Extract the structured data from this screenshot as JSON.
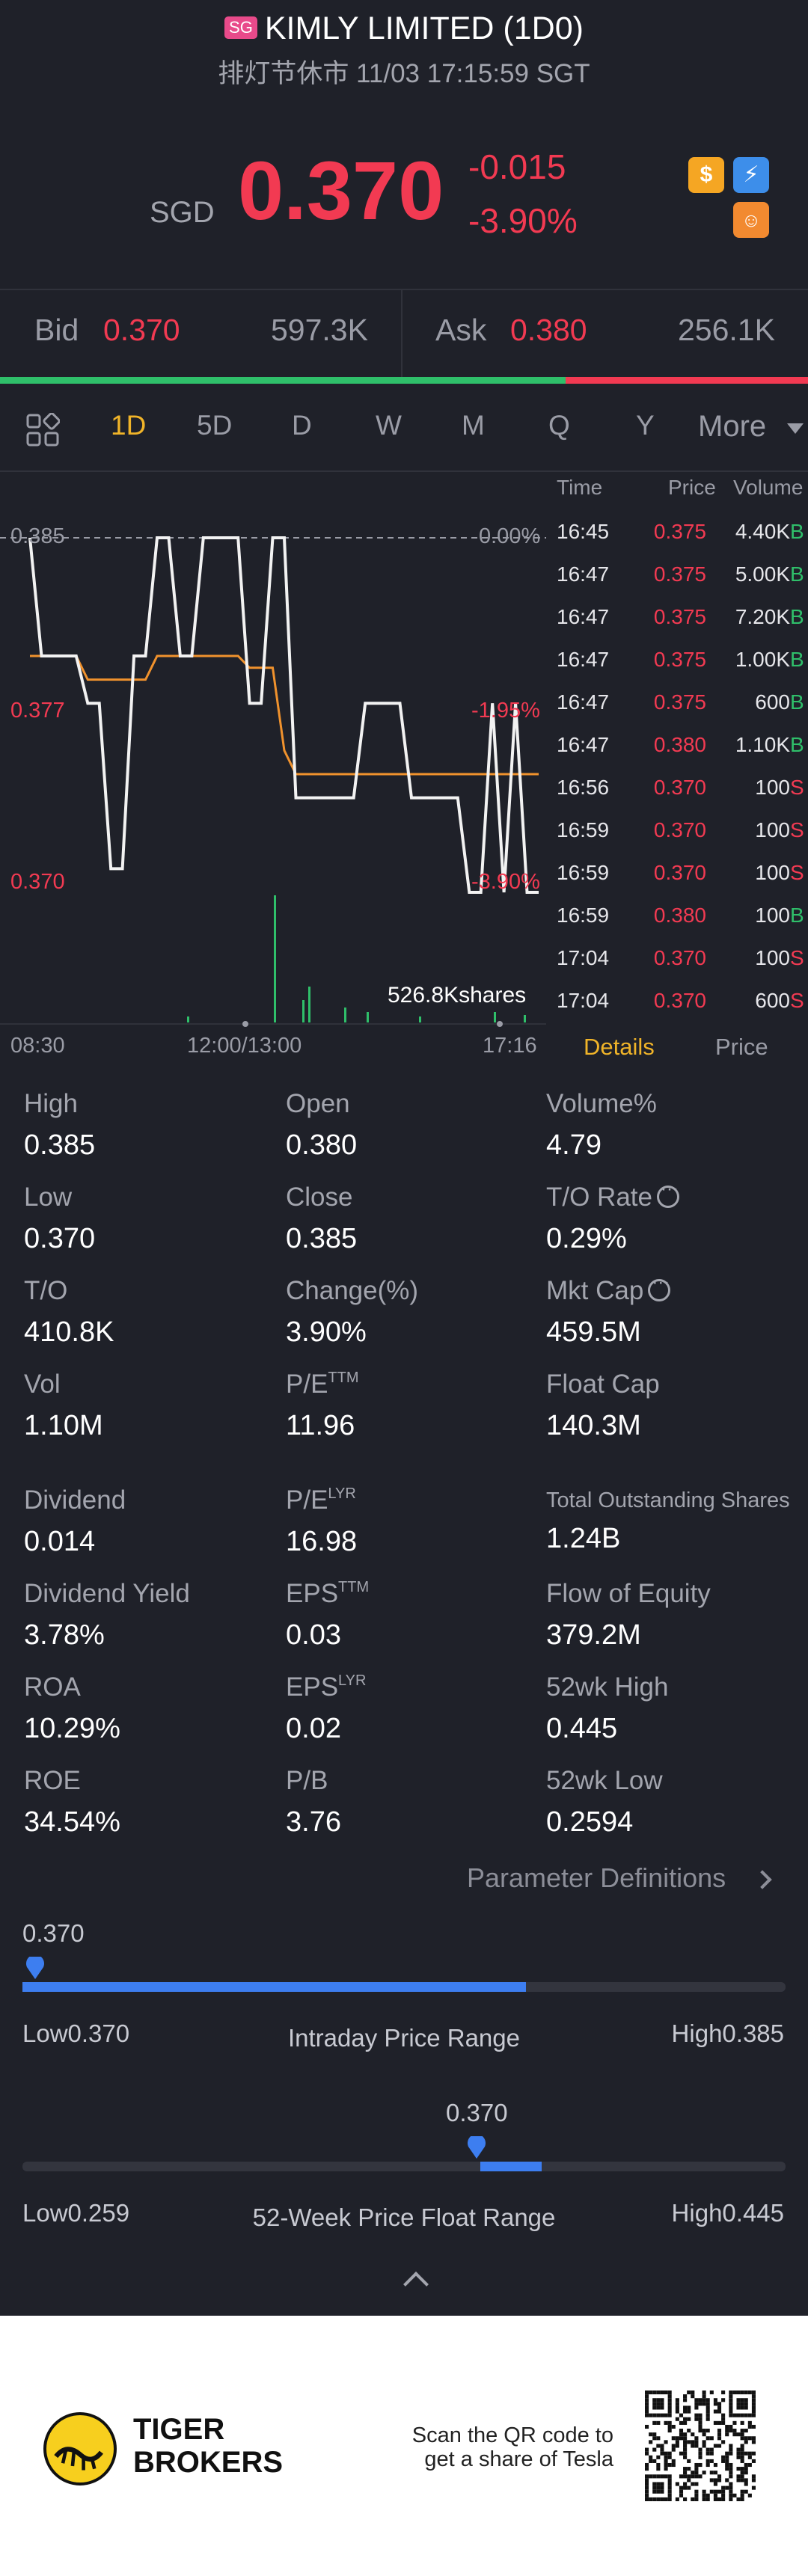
{
  "header": {
    "badge": "SG",
    "name": "KIMLY LIMITED (1D0)",
    "status_line": "排灯节休市 11/03 17:15:59 SGT",
    "currency": "SGD",
    "price": "0.370",
    "change": "-0.015",
    "change_pct": "-3.90%",
    "icons": [
      "dollar-icon",
      "flash-icon",
      "margin-icon"
    ]
  },
  "bidask": {
    "bid_label": "Bid",
    "bid_price": "0.370",
    "bid_size": "597.3K",
    "ask_label": "Ask",
    "ask_price": "0.380",
    "ask_size": "256.1K",
    "bid_ratio": 0.7
  },
  "tabs": [
    "1D",
    "5D",
    "D",
    "W",
    "M",
    "Q",
    "Y",
    "More"
  ],
  "active_tab": "1D",
  "chart": {
    "price_labels": [
      "0.385",
      "0.377",
      "0.370"
    ],
    "pct_labels": [
      "0.00%",
      "-1.95%",
      "-3.90%"
    ],
    "volume_label": "526.8Kshares",
    "time_labels": [
      "08:30",
      "12:00/13:00",
      "17:16"
    ]
  },
  "chart_data": {
    "type": "line",
    "x_label_values": [
      "08:30",
      "12:00/13:00",
      "17:16"
    ],
    "ylim": [
      0.37,
      0.385
    ],
    "series": [
      {
        "values": [
          0.385,
          0.38,
          0.38,
          0.38,
          0.38,
          0.378,
          0.378,
          0.371,
          0.371,
          0.38,
          0.38,
          0.385,
          0.385,
          0.38,
          0.38,
          0.385,
          0.385,
          0.385,
          0.385,
          0.378,
          0.378,
          0.385,
          0.385,
          0.374,
          0.374,
          0.374,
          0.374,
          0.374,
          0.374,
          0.378,
          0.378,
          0.378,
          0.378,
          0.374,
          0.374,
          0.374,
          0.374,
          0.374,
          0.37,
          0.37,
          0.378,
          0.37,
          0.378,
          0.37,
          0.37
        ]
      },
      {
        "values": [
          0.38,
          0.38,
          0.38,
          0.38,
          0.38,
          0.379,
          0.379,
          0.379,
          0.379,
          0.379,
          0.379,
          0.38,
          0.38,
          0.38,
          0.38,
          0.38,
          0.38,
          0.38,
          0.38,
          0.3795,
          0.3795,
          0.3795,
          0.376,
          0.375,
          0.375,
          0.375,
          0.375,
          0.375,
          0.375,
          0.375,
          0.375,
          0.375,
          0.375,
          0.375,
          0.375,
          0.375,
          0.375,
          0.375,
          0.375,
          0.375,
          0.375,
          0.375,
          0.375,
          0.375,
          0.375
        ]
      }
    ],
    "reference_line": 0.385
  },
  "ticks": {
    "headers": [
      "Time",
      "Price",
      "Volume"
    ],
    "rows": [
      {
        "time": "16:45",
        "price": "0.375",
        "vol": "4.40K",
        "side": "B"
      },
      {
        "time": "16:47",
        "price": "0.375",
        "vol": "5.00K",
        "side": "B"
      },
      {
        "time": "16:47",
        "price": "0.375",
        "vol": "7.20K",
        "side": "B"
      },
      {
        "time": "16:47",
        "price": "0.375",
        "vol": "1.00K",
        "side": "B"
      },
      {
        "time": "16:47",
        "price": "0.375",
        "vol": "600",
        "side": "B"
      },
      {
        "time": "16:47",
        "price": "0.380",
        "vol": "1.10K",
        "side": "B"
      },
      {
        "time": "16:56",
        "price": "0.370",
        "vol": "100",
        "side": "S"
      },
      {
        "time": "16:59",
        "price": "0.370",
        "vol": "100",
        "side": "S"
      },
      {
        "time": "16:59",
        "price": "0.370",
        "vol": "100",
        "side": "S"
      },
      {
        "time": "16:59",
        "price": "0.380",
        "vol": "100",
        "side": "B"
      },
      {
        "time": "17:04",
        "price": "0.370",
        "vol": "100",
        "side": "S"
      },
      {
        "time": "17:04",
        "price": "0.370",
        "vol": "600",
        "side": "S"
      }
    ],
    "details_tab": "Details",
    "price_tab": "Price"
  },
  "stats": {
    "high_label": "High",
    "high": "0.385",
    "open_label": "Open",
    "open": "0.380",
    "volpct_label": "Volume%",
    "volpct": "4.79",
    "low_label": "Low",
    "low": "0.370",
    "close_label": "Close",
    "close": "0.385",
    "torate_label": "T/O Rate",
    "torate": "0.29%",
    "to_label": "T/O",
    "to": "410.8K",
    "change_label": "Change(%)",
    "change": "3.90%",
    "mktcap_label": "Mkt Cap",
    "mktcap": "459.5M",
    "vol_label": "Vol",
    "vol": "1.10M",
    "pe_label": "P/E",
    "pe_sup": "TTM",
    "pe": "11.96",
    "floatcap_label": "Float Cap",
    "floatcap": "140.3M",
    "dividend_label": "Dividend",
    "dividend": "0.014",
    "pelyr_label": "P/E",
    "pelyr_sup": "LYR",
    "pelyr": "16.98",
    "tos_label": "Total Outstanding Shares",
    "tos": "1.24B",
    "dy_label": "Dividend Yield",
    "dy": "3.78%",
    "eps_label": "EPS",
    "eps_sup": "TTM",
    "eps": "0.03",
    "foe_label": "Flow of Equity",
    "foe": "379.2M",
    "roa_label": "ROA",
    "roa": "10.29%",
    "epslyr_label": "EPS",
    "epslyr_sup": "LYR",
    "epslyr": "0.02",
    "h52_label": "52wk High",
    "h52": "0.445",
    "roe_label": "ROE",
    "roe": "34.54%",
    "pb_label": "P/B",
    "pb": "3.76",
    "l52_label": "52wk Low",
    "l52": "0.2594"
  },
  "param_link": "Parameter Definitions",
  "intraday": {
    "current": "0.370",
    "low": "Low0.370",
    "high": "High0.385",
    "title": "Intraday Price Range",
    "fill_start": 0.0,
    "fill_end": 0.66,
    "marker": 0.0
  },
  "week52": {
    "current": "0.370",
    "low": "Low0.259",
    "high": "High0.445",
    "title": "52-Week Price Float Range",
    "fill_start": 0.6,
    "fill_end": 0.68,
    "marker": 0.6
  },
  "footer": {
    "brand_line1": "TIGER",
    "brand_line2": "BROKERS",
    "qr_line1": "Scan the QR code to",
    "qr_line2": "get a share of Tesla"
  }
}
